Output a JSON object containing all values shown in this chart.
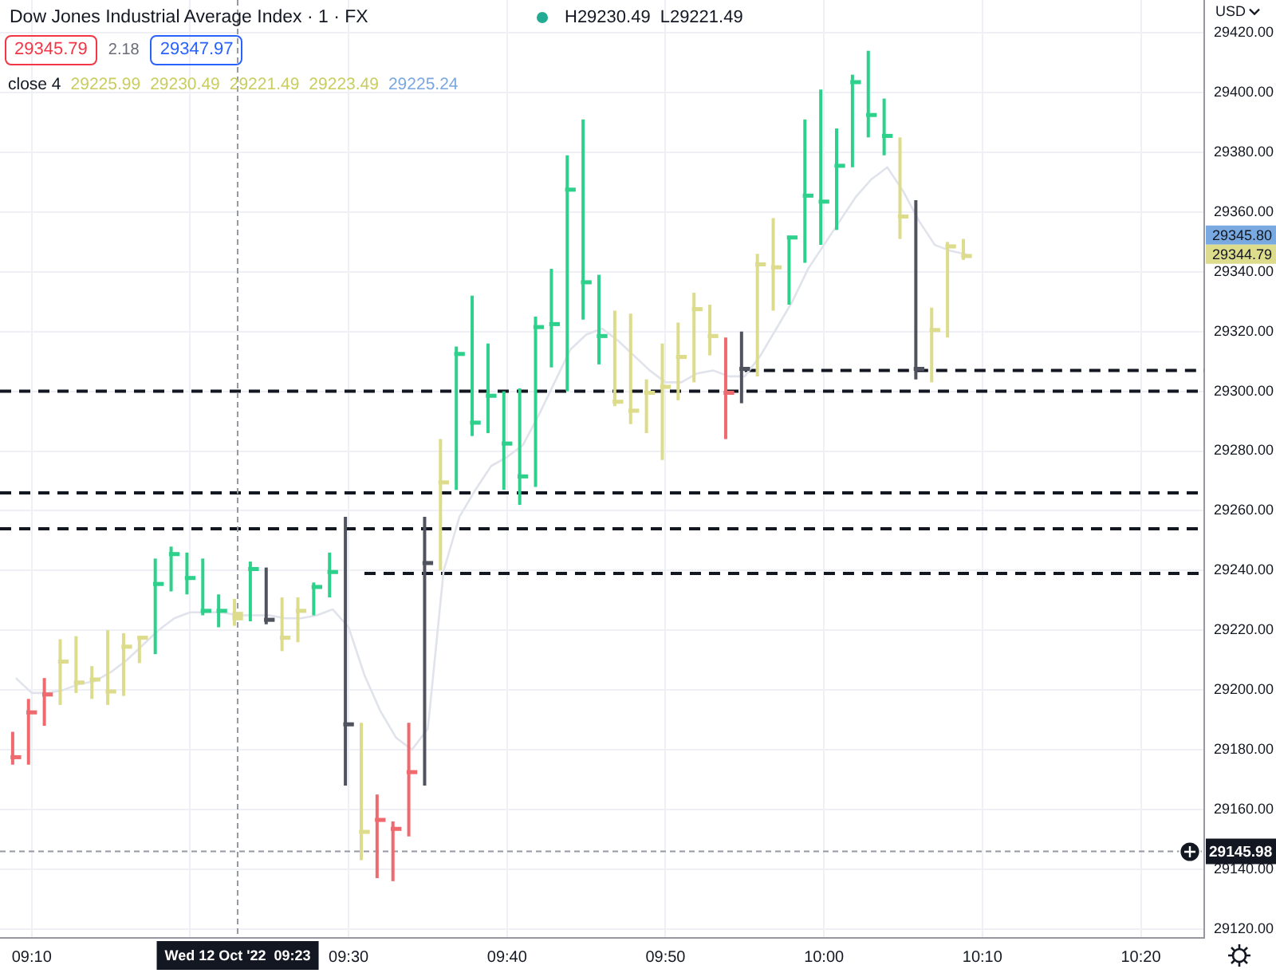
{
  "chart_data": {
    "type": "candlestick",
    "title": "Dow Jones Industrial Average Index · 1 · FX",
    "x": [
      "2022-10-12T09:09",
      "2022-10-12T09:10",
      "2022-10-12T09:11",
      "2022-10-12T09:12",
      "2022-10-12T09:13",
      "2022-10-12T09:14",
      "2022-10-12T09:15",
      "2022-10-12T09:16",
      "2022-10-12T09:17",
      "2022-10-12T09:18",
      "2022-10-12T09:19",
      "2022-10-12T09:20",
      "2022-10-12T09:21",
      "2022-10-12T09:22",
      "2022-10-12T09:23",
      "2022-10-12T09:24",
      "2022-10-12T09:25",
      "2022-10-12T09:26",
      "2022-10-12T09:27",
      "2022-10-12T09:28",
      "2022-10-12T09:29",
      "2022-10-12T09:30",
      "2022-10-12T09:31",
      "2022-10-12T09:32",
      "2022-10-12T09:33",
      "2022-10-12T09:34",
      "2022-10-12T09:35",
      "2022-10-12T09:36",
      "2022-10-12T09:37",
      "2022-10-12T09:38",
      "2022-10-12T09:39",
      "2022-10-12T09:40",
      "2022-10-12T09:41",
      "2022-10-12T09:42",
      "2022-10-12T09:43",
      "2022-10-12T09:44",
      "2022-10-12T09:45",
      "2022-10-12T09:46",
      "2022-10-12T09:47",
      "2022-10-12T09:48",
      "2022-10-12T09:49",
      "2022-10-12T09:50",
      "2022-10-12T09:51",
      "2022-10-12T09:52",
      "2022-10-12T09:53",
      "2022-10-12T09:54",
      "2022-10-12T09:55",
      "2022-10-12T09:56",
      "2022-10-12T09:57",
      "2022-10-12T09:58",
      "2022-10-12T09:59",
      "2022-10-12T10:00",
      "2022-10-12T10:01",
      "2022-10-12T10:02",
      "2022-10-12T10:03",
      "2022-10-12T10:04",
      "2022-10-12T10:05",
      "2022-10-12T10:06",
      "2022-10-12T10:07",
      "2022-10-12T10:08",
      "2022-10-12T10:09"
    ],
    "ohlc": [
      [
        29178,
        29186,
        29175,
        29177
      ],
      [
        29193,
        29197,
        29175,
        29192
      ],
      [
        29199,
        29204,
        29188,
        29198
      ],
      [
        29210,
        29217,
        29195,
        29209
      ],
      [
        29203,
        29218,
        29199,
        29202
      ],
      [
        29204,
        29208,
        29197,
        29203
      ],
      [
        29200,
        29220,
        29195,
        29199
      ],
      [
        29215,
        29219,
        29198,
        29214
      ],
      [
        29218,
        29218,
        29209,
        29217
      ],
      [
        29236,
        29244,
        29212,
        29235
      ],
      [
        29246,
        29248,
        29233,
        29245
      ],
      [
        29238,
        29246,
        29232,
        29237
      ],
      [
        29227,
        29244,
        29225,
        29226
      ],
      [
        29227,
        29232,
        29221,
        29226
      ],
      [
        29225.99,
        29230.49,
        29221.49,
        29223.49
      ],
      [
        29241,
        29243,
        29223,
        29240
      ],
      [
        29224,
        29241,
        29222,
        29223
      ],
      [
        29218,
        29231,
        29213,
        29217
      ],
      [
        29227,
        29231,
        29216,
        29226
      ],
      [
        29235,
        29236,
        29225,
        29234
      ],
      [
        29240,
        29246,
        29231,
        29239
      ],
      [
        29189,
        29258,
        29168,
        29188
      ],
      [
        29153,
        29189,
        29143,
        29152
      ],
      [
        29157,
        29165,
        29137,
        29156
      ],
      [
        29154,
        29156,
        29136,
        29153
      ],
      [
        29173,
        29189,
        29151,
        29172
      ],
      [
        29243,
        29258,
        29168,
        29242
      ],
      [
        29270,
        29284,
        29240,
        29269
      ],
      [
        29313,
        29315,
        29267,
        29312
      ],
      [
        29290,
        29332,
        29285,
        29289
      ],
      [
        29299,
        29316,
        29286,
        29298
      ],
      [
        29283,
        29300,
        29267,
        29282
      ],
      [
        29272,
        29301,
        29262,
        29271
      ],
      [
        29322,
        29325,
        29268,
        29321
      ],
      [
        29323,
        29341,
        29308,
        29322
      ],
      [
        29368,
        29379,
        29300,
        29367
      ],
      [
        29337,
        29391,
        29324,
        29336
      ],
      [
        29319,
        29339,
        29309,
        29318
      ],
      [
        29297,
        29327,
        29295,
        29296
      ],
      [
        29294,
        29326,
        29289,
        29293
      ],
      [
        29300,
        29304,
        29286,
        29299
      ],
      [
        29302,
        29316,
        29277,
        29301
      ],
      [
        29312,
        29323,
        29297,
        29311
      ],
      [
        29328,
        29333,
        29303,
        29327
      ],
      [
        29319,
        29329,
        29312,
        29318
      ],
      [
        29300,
        29318,
        29284,
        29299
      ],
      [
        29308,
        29320,
        29296,
        29307
      ],
      [
        29343,
        29346,
        29305,
        29342
      ],
      [
        29342,
        29358,
        29327,
        29341
      ],
      [
        29352,
        29352,
        29329,
        29351
      ],
      [
        29366,
        29391,
        29343,
        29365
      ],
      [
        29364,
        29401,
        29349,
        29363
      ],
      [
        29376,
        29388,
        29354,
        29375
      ],
      [
        29404,
        29406,
        29375,
        29403
      ],
      [
        29393,
        29414,
        29385,
        29392
      ],
      [
        29386,
        29398,
        29379,
        29385
      ],
      [
        29359,
        29385,
        29351,
        29358
      ],
      [
        29308,
        29364,
        29304,
        29307
      ],
      [
        29321,
        29328,
        29303,
        29320
      ],
      [
        29349,
        29350,
        29318,
        29348
      ],
      [
        29345.79,
        29351,
        29344,
        29344.79
      ]
    ],
    "colors": [
      "#ee6a6e",
      "#ee6a6e",
      "#ee6a6e",
      "#dcdc8c",
      "#dcdc8c",
      "#dcdc8c",
      "#dcdc8c",
      "#dcdc8c",
      "#dcdc8c",
      "#2ed18b",
      "#2ed18b",
      "#2ed18b",
      "#2ed18b",
      "#2ed18b",
      "#dcdc8c",
      "#2ed18b",
      "#50535e",
      "#dcdc8c",
      "#dcdc8c",
      "#2ed18b",
      "#2ed18b",
      "#50535e",
      "#dcdc8c",
      "#ee6a6e",
      "#ee6a6e",
      "#ee6a6e",
      "#50535e",
      "#dcdc8c",
      "#2ed18b",
      "#2ed18b",
      "#2ed18b",
      "#2ed18b",
      "#2ed18b",
      "#2ed18b",
      "#2ed18b",
      "#2ed18b",
      "#2ed18b",
      "#2ed18b",
      "#dcdc8c",
      "#dcdc8c",
      "#dcdc8c",
      "#dcdc8c",
      "#dcdc8c",
      "#dcdc8c",
      "#dcdc8c",
      "#ee6a6e",
      "#50535e",
      "#dcdc8c",
      "#dcdc8c",
      "#2ed18b",
      "#2ed18b",
      "#2ed18b",
      "#2ed18b",
      "#2ed18b",
      "#2ed18b",
      "#2ed18b",
      "#dcdc8c",
      "#50535e",
      "#dcdc8c",
      "#dcdc8c",
      "#dcdc8c"
    ],
    "series": [
      {
        "type": "line",
        "color": "#e0e3eb",
        "line_style": "solid",
        "values": [
          29204,
          29199,
          29199,
          29200,
          29202,
          29203,
          29206,
          29210,
          29215,
          29220,
          29224,
          29226,
          29226,
          29226,
          29225,
          29225,
          29225,
          29224,
          29224,
          29225,
          29227,
          29221,
          29205,
          29193,
          29184,
          29180,
          29187,
          29240,
          29258,
          29267,
          29275,
          29278,
          29282,
          29292,
          29303,
          29314,
          29319,
          29321,
          29317,
          29312,
          29307,
          29303,
          29303,
          29306,
          29307,
          29305,
          29305,
          29312,
          29321,
          29330,
          29341,
          29349,
          29357,
          29365,
          29371,
          29375,
          29367,
          29357,
          29349,
          29347,
          29345.8
        ]
      },
      {
        "type": "line",
        "color": "#131722",
        "line_style": "dashed",
        "x": [
          "2022-10-12T09:55",
          "2022-10-12T10:24"
        ],
        "values": [
          29307,
          29307
        ]
      },
      {
        "type": "line",
        "color": "#131722",
        "line_style": "dashed",
        "x": [
          "2022-10-12T09:31",
          "2022-10-12T10:24"
        ],
        "values": [
          29239,
          29239
        ]
      }
    ],
    "ref_lines": [
      {
        "axis": "y",
        "value": 29300,
        "color": "#131722",
        "line_style": "dashed"
      },
      {
        "axis": "y",
        "value": 29266,
        "color": "#131722",
        "line_style": "dashed"
      },
      {
        "axis": "y",
        "value": 29254,
        "color": "#131722",
        "line_style": "dashed"
      },
      {
        "axis": "x",
        "value": "2022-10-12T09:23",
        "label": "Wed 12 Oct '22  09:23",
        "color": "#9598a1",
        "line_style": "dashed"
      },
      {
        "axis": "y",
        "value": 29145.98,
        "label": "29145.98",
        "color": "#9598a1",
        "line_style": "dashed"
      }
    ],
    "annotations": [
      "H29230.49",
      "L29221.49",
      "29345.79",
      "2.18",
      "29347.97",
      "close 4",
      "29225.99",
      "29230.49",
      "29221.49",
      "29223.49",
      "29225.24",
      "29345.80",
      "29344.79",
      "USD"
    ],
    "xlim": [
      "2022-10-12T09:08",
      "2022-10-12T10:24"
    ],
    "xticks": [
      {
        "value": "2022-10-12T09:10",
        "label": "09:10"
      },
      {
        "value": "2022-10-12T09:20",
        "label": null
      },
      {
        "value": "2022-10-12T09:30",
        "label": "09:30"
      },
      {
        "value": "2022-10-12T09:40",
        "label": "09:40"
      },
      {
        "value": "2022-10-12T09:50",
        "label": "09:50"
      },
      {
        "value": "2022-10-12T10:00",
        "label": "10:00"
      },
      {
        "value": "2022-10-12T10:10",
        "label": "10:10"
      },
      {
        "value": "2022-10-12T10:20",
        "label": "10:20"
      }
    ],
    "ylim": [
      29117,
      29431
    ],
    "yticks": [
      {
        "value": 29120,
        "label": "29120.00"
      },
      {
        "value": 29140,
        "label": "29140.00"
      },
      {
        "value": 29160,
        "label": "29160.00"
      },
      {
        "value": 29180,
        "label": "29180.00"
      },
      {
        "value": 29200,
        "label": "29200.00"
      },
      {
        "value": 29220,
        "label": "29220.00"
      },
      {
        "value": 29240,
        "label": "29240.00"
      },
      {
        "value": 29260,
        "label": "29260.00"
      },
      {
        "value": 29280,
        "label": "29280.00"
      },
      {
        "value": 29300,
        "label": "29300.00"
      },
      {
        "value": 29320,
        "label": "29320.00"
      },
      {
        "value": 29340,
        "label": "29340.00"
      },
      {
        "value": 29360,
        "label": "29360.00"
      },
      {
        "value": 29380,
        "label": "29380.00"
      },
      {
        "value": 29400,
        "label": "29400.00"
      },
      {
        "value": 29420,
        "label": "29420.00"
      }
    ],
    "grid": true,
    "legend": false,
    "marker": "none"
  }
}
